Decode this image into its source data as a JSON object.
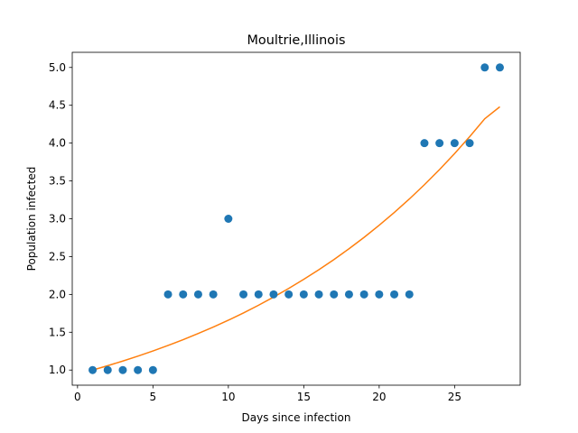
{
  "chart_data": {
    "type": "scatter",
    "title": "Moultrie,Illinois",
    "xlabel": "Days since infection",
    "ylabel": "Population infected",
    "xlim": [
      -0.35,
      29.35
    ],
    "ylim": [
      0.8,
      5.2
    ],
    "xticks": [
      0,
      5,
      10,
      15,
      20,
      25
    ],
    "xtick_labels": [
      "0",
      "5",
      "10",
      "15",
      "20",
      "25"
    ],
    "yticks": [
      1.0,
      1.5,
      2.0,
      2.5,
      3.0,
      3.5,
      4.0,
      4.5,
      5.0
    ],
    "ytick_labels": [
      "1.0",
      "1.5",
      "2.0",
      "2.5",
      "3.0",
      "3.5",
      "4.0",
      "4.5",
      "5.0"
    ],
    "grid": false,
    "legend": "none",
    "series": [
      {
        "kind": "scatter",
        "color": "#1f77b4",
        "x": [
          1,
          2,
          3,
          4,
          5,
          6,
          7,
          8,
          9,
          10,
          11,
          12,
          13,
          14,
          15,
          16,
          17,
          18,
          19,
          20,
          21,
          22,
          23,
          24,
          25,
          26,
          27,
          28
        ],
        "y": [
          1,
          1,
          1,
          1,
          1,
          2,
          2,
          2,
          2,
          3,
          2,
          2,
          2,
          2,
          2,
          2,
          2,
          2,
          2,
          2,
          2,
          2,
          4,
          4,
          4,
          4,
          5,
          5
        ]
      },
      {
        "kind": "line",
        "color": "#ff7f0e",
        "x": [
          1,
          2,
          3,
          4,
          5,
          6,
          7,
          8,
          9,
          10,
          11,
          12,
          13,
          14,
          15,
          16,
          17,
          18,
          19,
          20,
          21,
          22,
          23,
          24,
          25,
          26,
          27,
          28
        ],
        "y": [
          1.0,
          1.058,
          1.119,
          1.184,
          1.252,
          1.325,
          1.401,
          1.483,
          1.569,
          1.659,
          1.755,
          1.857,
          1.965,
          2.079,
          2.199,
          2.326,
          2.461,
          2.604,
          2.754,
          2.914,
          3.083,
          3.261,
          3.45,
          3.65,
          3.862,
          4.085,
          4.322,
          4.48
        ]
      }
    ]
  }
}
